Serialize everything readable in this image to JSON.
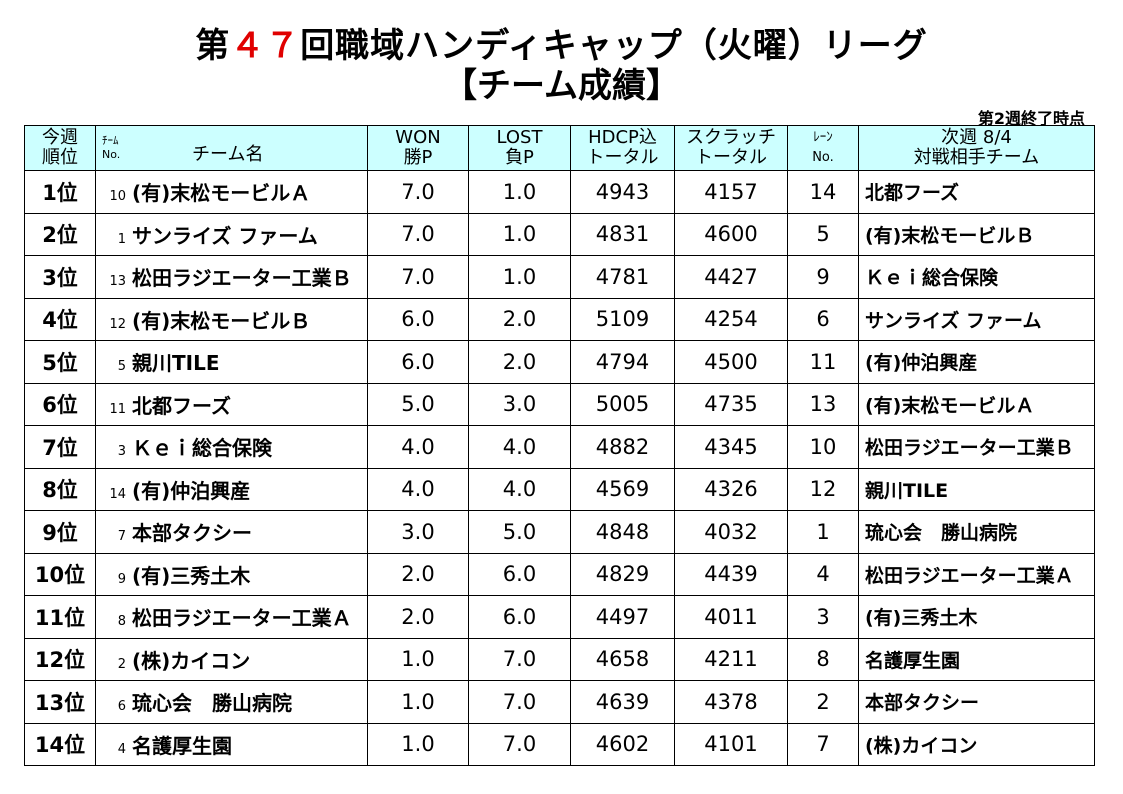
{
  "title": {
    "prefix": "第",
    "number": "４７",
    "suffix": "回職域ハンディキャップ（火曜）リーグ"
  },
  "subtitle": "【チーム成績】",
  "as_of": "第2週終了時点",
  "headers": {
    "rank": [
      "今週",
      "順位"
    ],
    "team_no": [
      "ﾁｰﾑ",
      "No."
    ],
    "team_name": "チーム名",
    "won": [
      "WON",
      "勝P"
    ],
    "lost": [
      "LOST",
      "負P"
    ],
    "hdcp": [
      "HDCP込",
      "トータル"
    ],
    "scratch": [
      "スクラッチ",
      "トータル"
    ],
    "lane": [
      "ﾚｰﾝ",
      "No."
    ],
    "next": [
      "次週 8/4",
      "対戦相手チーム"
    ]
  },
  "rows": [
    {
      "rank": "1位",
      "no": "10",
      "team": "(有)末松モービルＡ",
      "won": "7.0",
      "lost": "1.0",
      "hdcp": "4943",
      "scratch": "4157",
      "lane": "14",
      "opp": "北都フーズ"
    },
    {
      "rank": "2位",
      "no": "1",
      "team": "サンライズ ファーム",
      "won": "7.0",
      "lost": "1.0",
      "hdcp": "4831",
      "scratch": "4600",
      "lane": "5",
      "opp": "(有)末松モービルＢ"
    },
    {
      "rank": "3位",
      "no": "13",
      "team": "松田ラジエーター工業Ｂ",
      "won": "7.0",
      "lost": "1.0",
      "hdcp": "4781",
      "scratch": "4427",
      "lane": "9",
      "opp": "Ｋｅｉ総合保険"
    },
    {
      "rank": "4位",
      "no": "12",
      "team": "(有)末松モービルＢ",
      "won": "6.0",
      "lost": "2.0",
      "hdcp": "5109",
      "scratch": "4254",
      "lane": "6",
      "opp": "サンライズ ファーム"
    },
    {
      "rank": "5位",
      "no": "5",
      "team": "親川TILE",
      "won": "6.0",
      "lost": "2.0",
      "hdcp": "4794",
      "scratch": "4500",
      "lane": "11",
      "opp": "(有)仲泊興産"
    },
    {
      "rank": "6位",
      "no": "11",
      "team": "北都フーズ",
      "won": "5.0",
      "lost": "3.0",
      "hdcp": "5005",
      "scratch": "4735",
      "lane": "13",
      "opp": "(有)末松モービルＡ"
    },
    {
      "rank": "7位",
      "no": "3",
      "team": "Ｋｅｉ総合保険",
      "won": "4.0",
      "lost": "4.0",
      "hdcp": "4882",
      "scratch": "4345",
      "lane": "10",
      "opp": "松田ラジエーター工業Ｂ"
    },
    {
      "rank": "8位",
      "no": "14",
      "team": "(有)仲泊興産",
      "won": "4.0",
      "lost": "4.0",
      "hdcp": "4569",
      "scratch": "4326",
      "lane": "12",
      "opp": "親川TILE"
    },
    {
      "rank": "9位",
      "no": "7",
      "team": "本部タクシー",
      "won": "3.0",
      "lost": "5.0",
      "hdcp": "4848",
      "scratch": "4032",
      "lane": "1",
      "opp": "琉心会　勝山病院"
    },
    {
      "rank": "10位",
      "no": "9",
      "team": "(有)三秀土木",
      "won": "2.0",
      "lost": "6.0",
      "hdcp": "4829",
      "scratch": "4439",
      "lane": "4",
      "opp": "松田ラジエーター工業Ａ"
    },
    {
      "rank": "11位",
      "no": "8",
      "team": "松田ラジエーター工業Ａ",
      "won": "2.0",
      "lost": "6.0",
      "hdcp": "4497",
      "scratch": "4011",
      "lane": "3",
      "opp": "(有)三秀土木"
    },
    {
      "rank": "12位",
      "no": "2",
      "team": "(株)カイコン",
      "won": "1.0",
      "lost": "7.0",
      "hdcp": "4658",
      "scratch": "4211",
      "lane": "8",
      "opp": "名護厚生園"
    },
    {
      "rank": "13位",
      "no": "6",
      "team": "琉心会　勝山病院",
      "won": "1.0",
      "lost": "7.0",
      "hdcp": "4639",
      "scratch": "4378",
      "lane": "2",
      "opp": "本部タクシー"
    },
    {
      "rank": "14位",
      "no": "4",
      "team": "名護厚生園",
      "won": "1.0",
      "lost": "7.0",
      "hdcp": "4602",
      "scratch": "4101",
      "lane": "7",
      "opp": "(株)カイコン"
    }
  ],
  "colors": {
    "title_number": "#e00000",
    "header_bg": "#ccffff"
  }
}
